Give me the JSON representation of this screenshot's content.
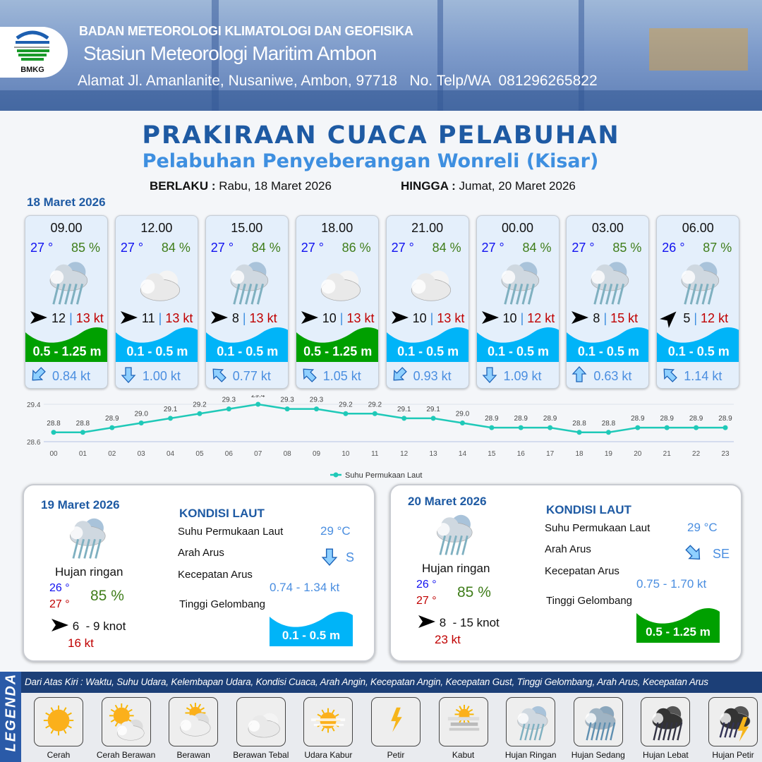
{
  "header": {
    "agency": "BADAN METEOROLOGI KLIMATOLOGI DAN GEOFISIKA",
    "station": "Stasiun Meteorologi Maritim Ambon",
    "address": "Alamat Jl. Amanlanite, Nusaniwe, Ambon, 97718   No. Telp/WA  081296265822",
    "logo_text": "BMKG"
  },
  "title": "PRAKIRAAN CUACA PELABUHAN",
  "subtitle": "Pelabuhan Penyeberangan Wonreli (Kisar)",
  "validity": {
    "from_label": "BERLAKU :",
    "from": "Rabu, 18 Maret 2026",
    "to_label": "HINGGA :",
    "to": "Jumat, 20 Maret 2026"
  },
  "day1": {
    "date": "18 Maret 2026",
    "forecasts": [
      {
        "time": "09.00",
        "temp": "27 °",
        "hum": "85 %",
        "icon": "hujan-ringan",
        "wind_dir": "E",
        "wind": "12",
        "gust": "13 kt",
        "wave": "0.5 - 1.25 m",
        "wave_color": "#00a000",
        "cur_dir": "SW",
        "current": "0.84 kt"
      },
      {
        "time": "12.00",
        "temp": "27 °",
        "hum": "84 %",
        "icon": "berawan-tebal",
        "wind_dir": "E",
        "wind": "11",
        "gust": "13 kt",
        "wave": "0.1 - 0.5 m",
        "wave_color": "#00b4f8",
        "cur_dir": "S",
        "current": "1.00 kt"
      },
      {
        "time": "15.00",
        "temp": "27 °",
        "hum": "84 %",
        "icon": "hujan-ringan",
        "wind_dir": "E",
        "wind": "8",
        "gust": "13 kt",
        "wave": "0.1 - 0.5 m",
        "wave_color": "#00b4f8",
        "cur_dir": "NW",
        "current": "0.77 kt"
      },
      {
        "time": "18.00",
        "temp": "27 °",
        "hum": "86 %",
        "icon": "berawan-tebal",
        "wind_dir": "E",
        "wind": "10",
        "gust": "13 kt",
        "wave": "0.5 - 1.25 m",
        "wave_color": "#00a000",
        "cur_dir": "NW",
        "current": "1.05 kt"
      },
      {
        "time": "21.00",
        "temp": "27 °",
        "hum": "84 %",
        "icon": "berawan-tebal",
        "wind_dir": "E",
        "wind": "10",
        "gust": "13 kt",
        "wave": "0.1 - 0.5 m",
        "wave_color": "#00b4f8",
        "cur_dir": "SW",
        "current": "0.93 kt"
      },
      {
        "time": "00.00",
        "temp": "27 °",
        "hum": "84 %",
        "icon": "hujan-ringan",
        "wind_dir": "E",
        "wind": "10",
        "gust": "12 kt",
        "wave": "0.1 - 0.5 m",
        "wave_color": "#00b4f8",
        "cur_dir": "S",
        "current": "1.09 kt"
      },
      {
        "time": "03.00",
        "temp": "27 °",
        "hum": "85 %",
        "icon": "hujan-ringan",
        "wind_dir": "E",
        "wind": "8",
        "gust": "15 kt",
        "wave": "0.1 - 0.5 m",
        "wave_color": "#00b4f8",
        "cur_dir": "N",
        "current": "0.63 kt"
      },
      {
        "time": "06.00",
        "temp": "26 °",
        "hum": "87 %",
        "icon": "hujan-ringan",
        "wind_dir": "NE",
        "wind": "5",
        "gust": "12 kt",
        "wave": "0.1 - 0.5 m",
        "wave_color": "#00b4f8",
        "cur_dir": "NW",
        "current": "1.14 kt"
      }
    ]
  },
  "chart_data": {
    "type": "line",
    "categories": [
      "00",
      "01",
      "02",
      "03",
      "04",
      "05",
      "06",
      "07",
      "08",
      "09",
      "10",
      "11",
      "12",
      "13",
      "14",
      "15",
      "16",
      "17",
      "18",
      "19",
      "20",
      "21",
      "22",
      "23"
    ],
    "series": [
      {
        "name": "Suhu Permukaan Laut",
        "values": [
          28.8,
          28.8,
          28.9,
          29.0,
          29.1,
          29.2,
          29.3,
          29.4,
          29.3,
          29.3,
          29.2,
          29.2,
          29.1,
          29.1,
          29.0,
          28.9,
          28.9,
          28.9,
          28.8,
          28.8,
          28.9,
          28.9,
          28.9,
          28.9
        ],
        "color": "#1fc9b8"
      }
    ],
    "y_ticks": [
      "29.4",
      "28.6"
    ],
    "ylim": [
      28.6,
      29.4
    ],
    "grid": true,
    "legend": "bottom-center"
  },
  "days": [
    {
      "date": "19 Maret 2026",
      "icon": "hujan-ringan",
      "condition": "Hujan ringan",
      "tmin": "26 °",
      "tmax": "27 °",
      "hum": "85 %",
      "wind": "6  - 9 knot",
      "gust": "16 kt",
      "kondisi_label": "KONDISI LAUT",
      "sst_label": "Suhu Permukaan Laut",
      "sst": "29 °C",
      "cur_dir_label": "Arah Arus",
      "cur_dir": "S",
      "cur_speed_label": "Kecepatan Arus",
      "cur_speed": "0.74 - 1.34 kt",
      "wave_label": "Tinggi Gelombang",
      "wave": "0.1 - 0.5 m",
      "wave_color": "#00b4f8"
    },
    {
      "date": "20 Maret 2026",
      "icon": "hujan-ringan",
      "condition": "Hujan ringan",
      "tmin": "26 °",
      "tmax": "27 °",
      "hum": "85 %",
      "wind": "8  - 15 knot",
      "gust": "23 kt",
      "kondisi_label": "KONDISI LAUT",
      "sst_label": "Suhu Permukaan Laut",
      "sst": "29 °C",
      "cur_dir_label": "Arah Arus",
      "cur_dir": "SE",
      "cur_speed_label": "Kecepatan Arus",
      "cur_speed": "0.75 - 1.70 kt",
      "wave_label": "Tinggi Gelombang",
      "wave": "0.5 - 1.25 m",
      "wave_color": "#00a000"
    }
  ],
  "legend": {
    "title": "LEGENDA",
    "description": "Dari Atas Kiri : Waktu, Suhu Udara, Kelembapan Udara, Kondisi Cuaca, Arah Angin, Kecepatan Angin, Kecepatan Gust, Tinggi Gelombang, Arah Arus, Kecepatan Arus",
    "items": [
      {
        "label": "Cerah",
        "icon": "cerah"
      },
      {
        "label": "Cerah Berawan",
        "icon": "cerah-berawan"
      },
      {
        "label": "Berawan",
        "icon": "berawan"
      },
      {
        "label": "Berawan Tebal",
        "icon": "berawan-tebal"
      },
      {
        "label": "Udara Kabur",
        "icon": "udara-kabur"
      },
      {
        "label": "Petir",
        "icon": "petir"
      },
      {
        "label": "Kabut",
        "icon": "kabut"
      },
      {
        "label": "Hujan Ringan",
        "icon": "hujan-ringan"
      },
      {
        "label": "Hujan Sedang",
        "icon": "hujan-sedang"
      },
      {
        "label": "Hujan Lebat",
        "icon": "hujan-lebat"
      },
      {
        "label": "Hujan Petir",
        "icon": "hujan-petir"
      }
    ]
  }
}
